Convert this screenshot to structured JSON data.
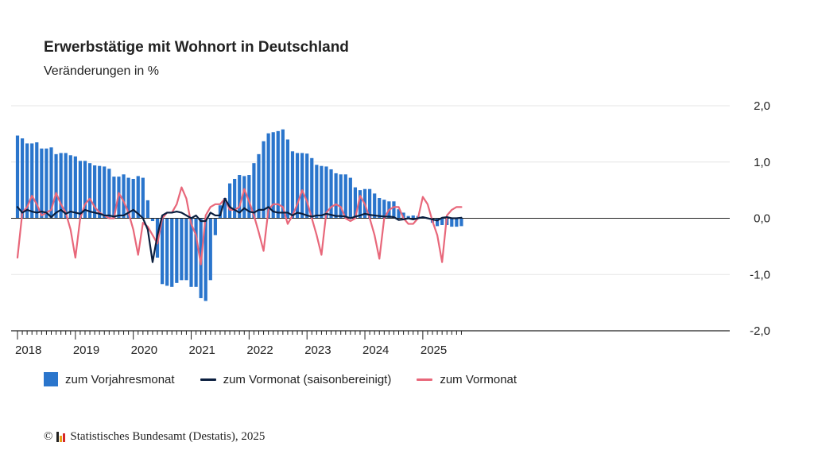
{
  "title": "Erwerbstätige mit Wohnort in Deutschland",
  "subtitle": "Veränderungen in %",
  "source": {
    "copyright_symbol": "©",
    "text": "Statistisches Bundesamt (Destatis), 2025"
  },
  "colors": {
    "bar": "#2a75cc",
    "sa_line": "#0b1f3f",
    "mom_line": "#e8677a",
    "grid": "#e6e6e6",
    "axis": "#222222",
    "logo": [
      "#222222",
      "#e8a317",
      "#d62828"
    ]
  },
  "legend": [
    {
      "label": "zum Vorjahresmonat",
      "kind": "bar",
      "color": "#2a75cc"
    },
    {
      "label": "zum Vormonat (saisonbereinigt)",
      "kind": "line",
      "color": "#0b1f3f"
    },
    {
      "label": "zum Vormonat",
      "kind": "line",
      "color": "#e8677a"
    }
  ],
  "chart_data": {
    "type": "bar",
    "title": "Erwerbstätige mit Wohnort in Deutschland",
    "subtitle": "Veränderungen in %",
    "ylim": [
      -2.0,
      2.0
    ],
    "yticks": [
      2.0,
      1.0,
      0.0,
      -1.0,
      -2.0
    ],
    "ytick_labels": [
      "2,0",
      "1,0",
      "0,0",
      "-1,0",
      "-2,0"
    ],
    "xticks": [
      "2018",
      "2019",
      "2020",
      "2021",
      "2022",
      "2023",
      "2024",
      "2025"
    ],
    "x_start": "2018-01",
    "x_end": "2025-05",
    "grid": true,
    "legend_position": "bottom-left",
    "series": [
      {
        "name": "zum Vorjahresmonat",
        "type": "bar",
        "values": [
          1.47,
          1.42,
          1.33,
          1.33,
          1.35,
          1.24,
          1.24,
          1.26,
          1.14,
          1.16,
          1.16,
          1.12,
          1.1,
          1.02,
          1.02,
          0.98,
          0.94,
          0.93,
          0.92,
          0.88,
          0.74,
          0.74,
          0.78,
          0.72,
          0.7,
          0.75,
          0.72,
          0.32,
          -0.05,
          -0.7,
          -1.17,
          -1.2,
          -1.22,
          -1.15,
          -1.1,
          -1.1,
          -1.22,
          -1.22,
          -1.42,
          -1.47,
          -1.1,
          -0.3,
          0.23,
          0.36,
          0.62,
          0.7,
          0.77,
          0.75,
          0.77,
          0.98,
          1.14,
          1.37,
          1.51,
          1.53,
          1.55,
          1.58,
          1.4,
          1.19,
          1.16,
          1.16,
          1.15,
          1.07,
          0.95,
          0.93,
          0.92,
          0.87,
          0.8,
          0.78,
          0.78,
          0.72,
          0.55,
          0.5,
          0.52,
          0.52,
          0.44,
          0.36,
          0.33,
          0.3,
          0.3,
          0.16,
          0.1,
          0.04,
          0.05,
          0.04,
          0.03,
          0.0,
          -0.08,
          -0.14,
          -0.12,
          -0.12,
          -0.15,
          -0.15,
          -0.14
        ]
      },
      {
        "name": "zum Vormonat (saisonbereinigt)",
        "type": "line",
        "values": [
          0.2,
          0.1,
          0.15,
          0.12,
          0.1,
          0.12,
          0.1,
          0.02,
          0.1,
          0.15,
          0.08,
          0.12,
          0.1,
          0.08,
          0.15,
          0.12,
          0.1,
          0.08,
          0.05,
          0.05,
          0.03,
          0.05,
          0.05,
          0.1,
          0.15,
          0.08,
          0.0,
          -0.2,
          -0.78,
          -0.3,
          0.05,
          0.1,
          0.1,
          0.12,
          0.1,
          0.05,
          0.0,
          0.05,
          -0.05,
          -0.05,
          0.1,
          0.05,
          0.05,
          0.35,
          0.2,
          0.15,
          0.1,
          0.18,
          0.12,
          0.1,
          0.15,
          0.15,
          0.2,
          0.12,
          0.1,
          0.1,
          0.1,
          0.05,
          0.1,
          0.08,
          0.05,
          0.03,
          0.05,
          0.05,
          0.08,
          0.06,
          0.04,
          0.04,
          0.03,
          0.0,
          0.03,
          0.05,
          0.08,
          0.06,
          0.05,
          0.04,
          0.03,
          0.03,
          0.02,
          -0.03,
          -0.02,
          0.0,
          -0.02,
          0.0,
          0.02,
          0.0,
          -0.02,
          -0.04,
          0.01,
          0.02,
          0.0,
          0.0,
          0.01
        ]
      },
      {
        "name": "zum Vormonat",
        "type": "line",
        "values": [
          -0.7,
          0.1,
          0.2,
          0.4,
          0.25,
          0.05,
          0.1,
          0.15,
          0.45,
          0.25,
          0.1,
          -0.2,
          -0.7,
          0.0,
          0.25,
          0.35,
          0.2,
          0.1,
          0.05,
          0.0,
          0.0,
          0.45,
          0.3,
          0.1,
          -0.2,
          -0.65,
          -0.08,
          -0.15,
          -0.3,
          -0.45,
          0.0,
          0.1,
          0.1,
          0.25,
          0.55,
          0.35,
          -0.1,
          -0.3,
          -0.82,
          0.05,
          0.2,
          0.25,
          0.25,
          0.35,
          0.15,
          0.15,
          0.2,
          0.52,
          0.3,
          0.05,
          -0.25,
          -0.58,
          0.15,
          0.25,
          0.25,
          0.2,
          -0.1,
          0.05,
          0.25,
          0.5,
          0.3,
          0.0,
          -0.3,
          -0.65,
          0.1,
          0.2,
          0.25,
          0.2,
          0.0,
          -0.05,
          0.0,
          0.4,
          0.25,
          0.0,
          -0.3,
          -0.72,
          0.0,
          0.15,
          0.2,
          0.2,
          0.0,
          -0.1,
          -0.1,
          0.0,
          0.38,
          0.25,
          -0.05,
          -0.3,
          -0.78,
          0.05,
          0.15,
          0.2,
          0.2
        ]
      }
    ]
  }
}
